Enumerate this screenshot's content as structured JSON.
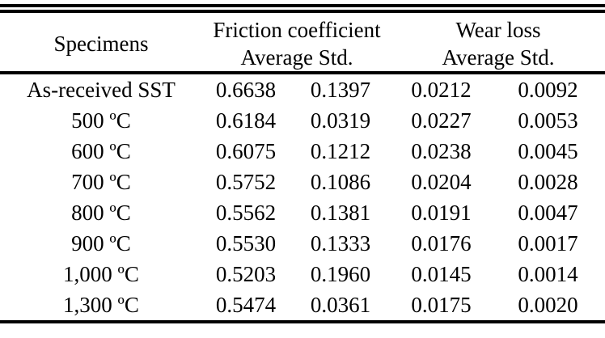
{
  "table": {
    "header": {
      "specimens": "Specimens",
      "friction_group": "Friction coefficient",
      "friction_sub": "Average Std.",
      "wear_group": "Wear loss",
      "wear_sub": "Average Std."
    },
    "rows": [
      {
        "specimen": "As-received SST",
        "friction_avg": "0.6638",
        "friction_std": "0.1397",
        "wear_avg": "0.0212",
        "wear_std": "0.0092"
      },
      {
        "specimen": "500 ºC",
        "friction_avg": "0.6184",
        "friction_std": "0.0319",
        "wear_avg": "0.0227",
        "wear_std": "0.0053"
      },
      {
        "specimen": "600 ºC",
        "friction_avg": "0.6075",
        "friction_std": "0.1212",
        "wear_avg": "0.0238",
        "wear_std": "0.0045"
      },
      {
        "specimen": "700 ºC",
        "friction_avg": "0.5752",
        "friction_std": "0.1086",
        "wear_avg": "0.0204",
        "wear_std": "0.0028"
      },
      {
        "specimen": "800 ºC",
        "friction_avg": "0.5562",
        "friction_std": "0.1381",
        "wear_avg": "0.0191",
        "wear_std": "0.0047"
      },
      {
        "specimen": "900 ºC",
        "friction_avg": "0.5530",
        "friction_std": "0.1333",
        "wear_avg": "0.0176",
        "wear_std": "0.0017"
      },
      {
        "specimen": "1,000 ºC",
        "friction_avg": "0.5203",
        "friction_std": "0.1960",
        "wear_avg": "0.0145",
        "wear_std": "0.0014"
      },
      {
        "specimen": "1,300 ºC",
        "friction_avg": "0.5474",
        "friction_std": "0.0361",
        "wear_avg": "0.0175",
        "wear_std": "0.0020"
      }
    ]
  },
  "chart_data": {
    "type": "table",
    "columns": [
      "Specimens",
      "Friction coefficient Average",
      "Friction coefficient Std.",
      "Wear loss Average",
      "Wear loss Std."
    ],
    "rows": [
      [
        "As-received SST",
        0.6638,
        0.1397,
        0.0212,
        0.0092
      ],
      [
        "500 ºC",
        0.6184,
        0.0319,
        0.0227,
        0.0053
      ],
      [
        "600 ºC",
        0.6075,
        0.1212,
        0.0238,
        0.0045
      ],
      [
        "700 ºC",
        0.5752,
        0.1086,
        0.0204,
        0.0028
      ],
      [
        "800 ºC",
        0.5562,
        0.1381,
        0.0191,
        0.0047
      ],
      [
        "900 ºC",
        0.553,
        0.1333,
        0.0176,
        0.0017
      ],
      [
        "1,000 ºC",
        0.5203,
        0.196,
        0.0145,
        0.0014
      ],
      [
        "1,300 ºC",
        0.5474,
        0.0361,
        0.0175,
        0.002
      ]
    ]
  },
  "colors": {
    "text": "#000000",
    "background": "#ffffff",
    "rule": "#000000"
  }
}
